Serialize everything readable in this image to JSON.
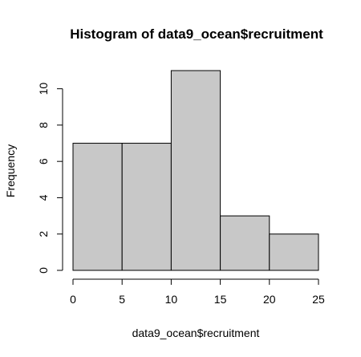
{
  "chart_data": {
    "type": "bar",
    "title": "Histogram of data9_ocean$recruitment",
    "xlabel": "data9_ocean$recruitment",
    "ylabel": "Frequency",
    "bins": [
      {
        "start": 0,
        "end": 5,
        "count": 7
      },
      {
        "start": 5,
        "end": 10,
        "count": 7
      },
      {
        "start": 10,
        "end": 15,
        "count": 11
      },
      {
        "start": 15,
        "end": 20,
        "count": 3
      },
      {
        "start": 20,
        "end": 25,
        "count": 2
      }
    ],
    "xlim": [
      0,
      25
    ],
    "ylim": [
      0,
      11
    ],
    "x_ticks": [
      0,
      5,
      10,
      15,
      20,
      25
    ],
    "y_ticks": [
      0,
      2,
      4,
      6,
      8,
      10
    ],
    "bar_color": "#c8c8c8",
    "grid": false
  }
}
